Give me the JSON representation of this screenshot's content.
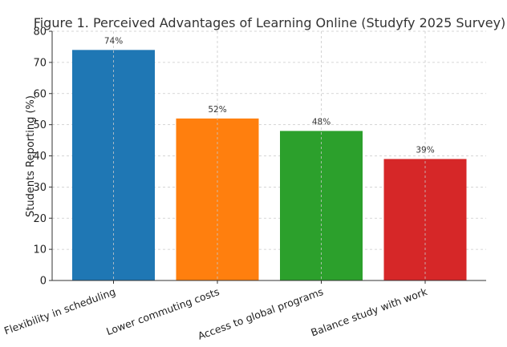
{
  "chart_data": {
    "type": "bar",
    "title": "Figure 1. Perceived Advantages of Learning Online (Studyfy 2025 Survey)",
    "xlabel": "",
    "ylabel": "Students Reporting (%)",
    "categories": [
      "Flexibility in scheduling",
      "Lower commuting costs",
      "Access to global programs",
      "Balance study with work"
    ],
    "values": [
      74,
      52,
      48,
      39
    ],
    "data_labels": [
      "74%",
      "52%",
      "48%",
      "39%"
    ],
    "colors": [
      "#1f77b4",
      "#ff7f0e",
      "#2ca02c",
      "#d62728"
    ],
    "ylim": [
      0,
      80
    ],
    "yticks": [
      "0",
      "10",
      "20",
      "30",
      "40",
      "50",
      "60",
      "70",
      "80"
    ],
    "grid": true,
    "legend": "none"
  }
}
